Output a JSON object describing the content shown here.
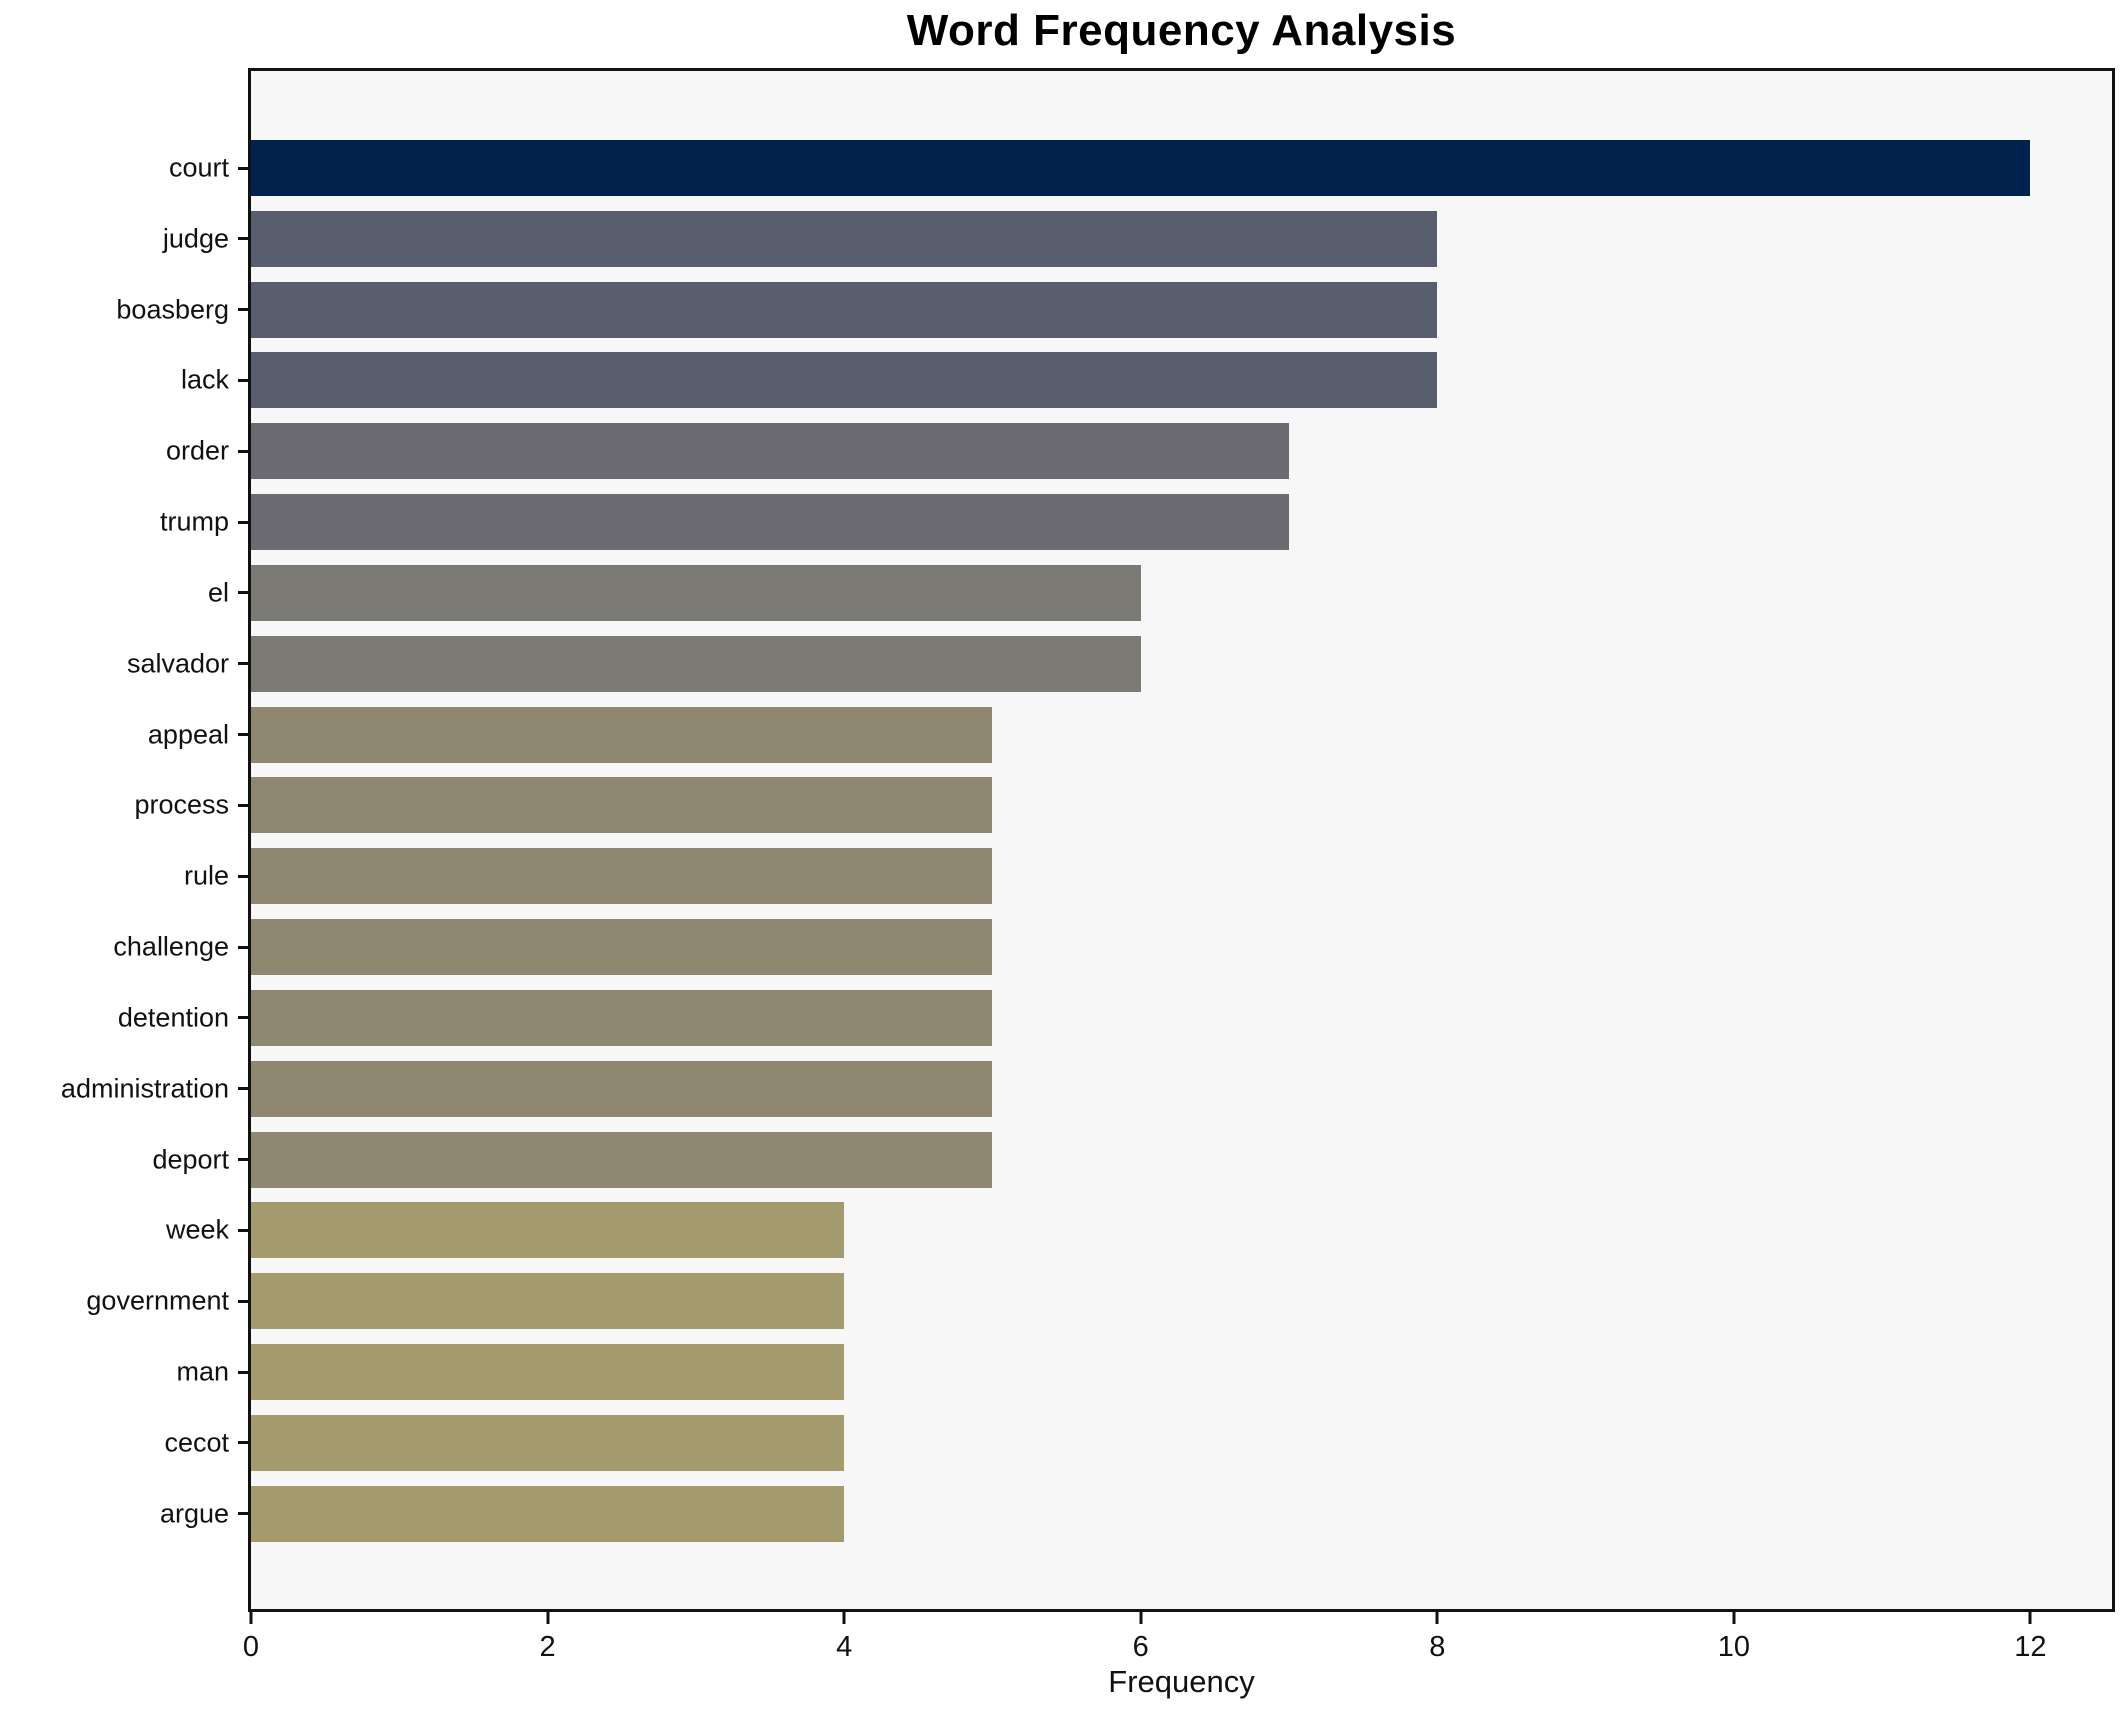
{
  "chart_data": {
    "type": "bar",
    "orientation": "horizontal",
    "title": "Word Frequency Analysis",
    "xlabel": "Frequency",
    "ylabel": "",
    "categories": [
      "court",
      "judge",
      "boasberg",
      "lack",
      "order",
      "trump",
      "el",
      "salvador",
      "appeal",
      "process",
      "rule",
      "challenge",
      "detention",
      "administration",
      "deport",
      "week",
      "government",
      "man",
      "cecot",
      "argue"
    ],
    "values": [
      12,
      8,
      8,
      8,
      7,
      7,
      6,
      6,
      5,
      5,
      5,
      5,
      5,
      5,
      5,
      4,
      4,
      4,
      4,
      4
    ],
    "xticks": [
      0,
      2,
      4,
      6,
      8,
      10,
      12
    ],
    "xlim": [
      0,
      12.55
    ],
    "grid": false,
    "legend_position": "none",
    "value_colors": {
      "12": "#02224e",
      "8": "#585e6e",
      "7": "#6a6a70",
      "6": "#7b7a74",
      "5": "#8f8770",
      "4": "#a39a6d"
    },
    "plot_background": "#f7f7f7",
    "figure_background": "#ffffff",
    "spine_color": "#111111"
  }
}
